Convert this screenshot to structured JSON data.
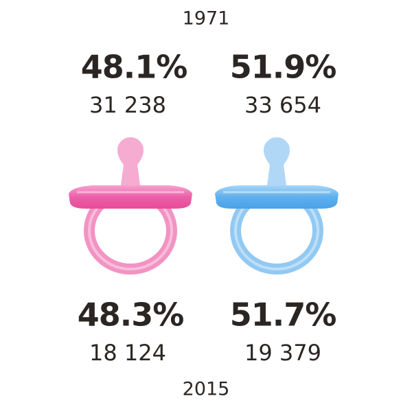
{
  "top": {
    "year": "1971",
    "girls": {
      "percent": "48.1%",
      "count": "31 238"
    },
    "boys": {
      "percent": "51.9%",
      "count": "33 654"
    }
  },
  "bottom": {
    "year": "2015",
    "girls": {
      "percent": "48.3%",
      "count": "18 124"
    },
    "boys": {
      "percent": "51.7%",
      "count": "19 379"
    }
  }
}
